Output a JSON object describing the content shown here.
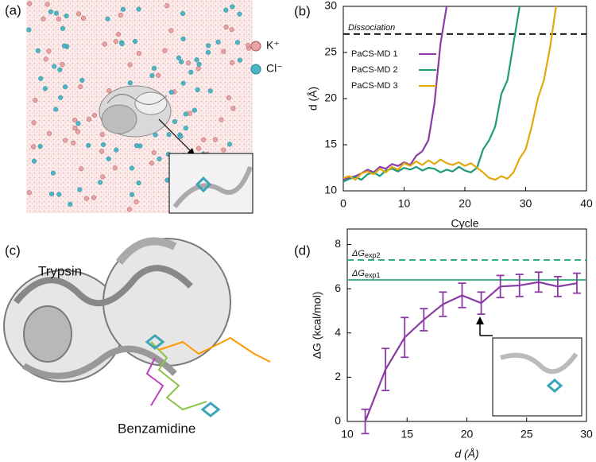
{
  "images": [
    {
      "panel_label": "(a)",
      "labels": [
        "K⁺",
        "Cl⁻"
      ]
    },
    {
      "panel_label": "(c)",
      "labels": [
        "Trypsin",
        "Benzamidine"
      ]
    }
  ],
  "chart_data": [
    {
      "type": "line",
      "panel_label": "(b)",
      "x": [
        0,
        1,
        2,
        3,
        4,
        5,
        6,
        7,
        8,
        9,
        10,
        11,
        12,
        13,
        14,
        15,
        16,
        17,
        18,
        19,
        20,
        21,
        22,
        23,
        24,
        25,
        26,
        27,
        28,
        29,
        30,
        31,
        32,
        33,
        34,
        35
      ],
      "series": [
        {
          "name": "PaCS-MD 1",
          "color": "#8a3ca4",
          "values": [
            11.2,
            11.4,
            11.6,
            11.9,
            12.3,
            12.0,
            12.6,
            12.4,
            12.9,
            12.7,
            13.1,
            12.8,
            13.8,
            14.3,
            15.5,
            19.5,
            26,
            30,
            null,
            null,
            null,
            null,
            null,
            null,
            null,
            null,
            null,
            null,
            null,
            null,
            null,
            null,
            null,
            null,
            null,
            null
          ]
        },
        {
          "name": "PaCS-MD 2",
          "color": "#1f9a78",
          "values": [
            11.0,
            11.3,
            11.5,
            11.2,
            11.8,
            12.0,
            11.6,
            12.2,
            12.4,
            12.1,
            12.5,
            12.3,
            12.6,
            12.2,
            12.5,
            12.4,
            12.0,
            12.3,
            12.1,
            12.6,
            12.2,
            12.0,
            12.5,
            14.5,
            15.5,
            17,
            20.5,
            22,
            26,
            30,
            null,
            null,
            null,
            null,
            null,
            null
          ]
        },
        {
          "name": "PaCS-MD 3",
          "color": "#e2a80c",
          "values": [
            11.4,
            11.6,
            11.2,
            11.9,
            12.1,
            11.8,
            12.4,
            12.0,
            12.6,
            12.3,
            13.0,
            12.7,
            13.2,
            12.8,
            13.3,
            12.9,
            13.4,
            13.0,
            12.8,
            13.1,
            12.7,
            13.0,
            12.5,
            12.0,
            11.4,
            11.2,
            11.6,
            11.3,
            12.0,
            13.5,
            14.5,
            17,
            20,
            22,
            25.5,
            30
          ]
        }
      ],
      "xlim": [
        0,
        40
      ],
      "ylim": [
        10,
        30
      ],
      "xticks": [
        0,
        10,
        20,
        30,
        40
      ],
      "yticks": [
        10,
        15,
        20,
        25,
        30
      ],
      "xlabel": "Cycle",
      "ylabel": "d (Å)",
      "reference_lines": [
        {
          "value": 27,
          "label": "Dissociation",
          "color": "#000000",
          "style": "dashed"
        }
      ],
      "legend": "upper-left"
    },
    {
      "type": "errorbar",
      "panel_label": "(d)",
      "x": [
        11.5,
        13.2,
        14.8,
        16.4,
        18.0,
        19.6,
        21.2,
        22.8,
        24.4,
        26.0,
        27.6,
        29.2
      ],
      "values": [
        0,
        2.35,
        3.8,
        4.6,
        5.3,
        5.7,
        5.35,
        6.1,
        6.15,
        6.3,
        6.1,
        6.25
      ],
      "errors": [
        0.55,
        0.95,
        0.9,
        0.5,
        0.55,
        0.55,
        0.5,
        0.5,
        0.5,
        0.45,
        0.45,
        0.45
      ],
      "color": "#8a3ca4",
      "xlim": [
        10,
        30
      ],
      "ylim": [
        0,
        8.7
      ],
      "xticks": [
        10,
        15,
        20,
        25,
        30
      ],
      "yticks": [
        0,
        2,
        4,
        6,
        8
      ],
      "xlabel": "d (Å)",
      "ylabel": "ΔG (kcal/mol)",
      "reference_lines": [
        {
          "value": 7.3,
          "label": "ΔG",
          "subscript": "exp2",
          "color": "#2aa876",
          "style": "dashed"
        },
        {
          "value": 6.4,
          "label": "ΔG",
          "subscript": "exp1",
          "color": "#2aa876",
          "style": "solid"
        }
      ]
    }
  ]
}
